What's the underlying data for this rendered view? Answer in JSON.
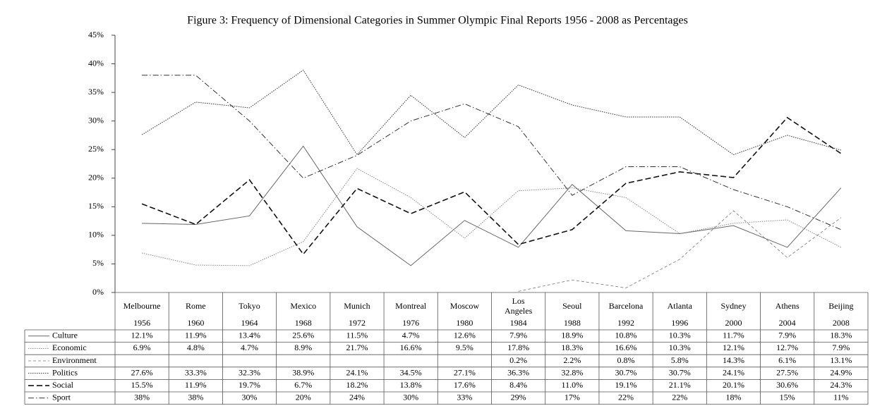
{
  "chart_data": {
    "type": "line",
    "title": "Figure 3: Frequency of Dimensional Categories in Summer Olympic Final Reports 1956 - 2008 as Percentages",
    "categories": [
      "Melbourne",
      "Rome",
      "Tokyo",
      "Mexico",
      "Munich",
      "Montreal",
      "Moscow",
      "Los Angeles",
      "Seoul",
      "Barcelona",
      "Atlanta",
      "Sydney",
      "Athens",
      "Beijing"
    ],
    "years": [
      1956,
      1960,
      1964,
      1968,
      1972,
      1976,
      1980,
      1984,
      1988,
      1992,
      1996,
      2000,
      2004,
      2008
    ],
    "ylim": [
      0,
      45
    ],
    "yticks": [
      {
        "value": 0,
        "label": "0%"
      },
      {
        "value": 5,
        "label": "5%"
      },
      {
        "value": 10,
        "label": "10%"
      },
      {
        "value": 15,
        "label": "15%"
      },
      {
        "value": 20,
        "label": "20%"
      },
      {
        "value": 25,
        "label": "25%"
      },
      {
        "value": 30,
        "label": "30%"
      },
      {
        "value": 35,
        "label": "35%"
      },
      {
        "value": 40,
        "label": "40%"
      },
      {
        "value": 45,
        "label": "45%"
      }
    ],
    "series": [
      {
        "name": "Culture",
        "color": "#666666",
        "line_style": "solid",
        "values": [
          12.1,
          11.9,
          13.4,
          25.6,
          11.5,
          4.7,
          12.6,
          7.9,
          18.9,
          10.8,
          10.3,
          11.7,
          7.9,
          18.3
        ],
        "value_labels": [
          "12.1%",
          "11.9%",
          "13.4%",
          "25.6%",
          "11.5%",
          "4.7%",
          "12.6%",
          "7.9%",
          "18.9%",
          "10.8%",
          "10.3%",
          "11.7%",
          "7.9%",
          "18.3%"
        ]
      },
      {
        "name": "Economic",
        "color": "#888888",
        "line_style": "dotted",
        "values": [
          6.9,
          4.8,
          4.7,
          8.9,
          21.7,
          16.6,
          9.5,
          17.8,
          18.3,
          16.6,
          10.3,
          12.1,
          12.7,
          7.9
        ],
        "value_labels": [
          "6.9%",
          "4.8%",
          "4.7%",
          "8.9%",
          "21.7%",
          "16.6%",
          "9.5%",
          "17.8%",
          "18.3%",
          "16.6%",
          "10.3%",
          "12.1%",
          "12.7%",
          "7.9%"
        ]
      },
      {
        "name": "Environment",
        "color": "#777777",
        "line_style": "dashed",
        "values": [
          null,
          null,
          null,
          null,
          null,
          null,
          null,
          0.2,
          2.2,
          0.8,
          5.8,
          14.3,
          6.1,
          13.1
        ],
        "value_labels": [
          null,
          null,
          null,
          null,
          null,
          null,
          null,
          "0.2%",
          "2.2%",
          "0.8%",
          "5.8%",
          "14.3%",
          "6.1%",
          "13.1%"
        ]
      },
      {
        "name": "Politics",
        "color": "#333333",
        "line_style": "dotted",
        "values": [
          27.6,
          33.3,
          32.3,
          38.9,
          24.1,
          34.5,
          27.1,
          36.3,
          32.8,
          30.7,
          30.7,
          24.1,
          27.5,
          24.9
        ],
        "value_labels": [
          "27.6%",
          "33.3%",
          "32.3%",
          "38.9%",
          "24.1%",
          "34.5%",
          "27.1%",
          "36.3%",
          "32.8%",
          "30.7%",
          "30.7%",
          "24.1%",
          "27.5%",
          "24.9%"
        ]
      },
      {
        "name": "Social",
        "color": "#111111",
        "line_style": "long-dash",
        "values": [
          15.5,
          11.9,
          19.7,
          6.7,
          18.2,
          13.8,
          17.6,
          8.4,
          11.0,
          19.1,
          21.1,
          20.1,
          30.6,
          24.3
        ],
        "value_labels": [
          "15.5%",
          "11.9%",
          "19.7%",
          "6.7%",
          "18.2%",
          "13.8%",
          "17.6%",
          "8.4%",
          "11.0%",
          "19.1%",
          "21.1%",
          "20.1%",
          "30.6%",
          "24.3%"
        ]
      },
      {
        "name": "Sport",
        "color": "#333333",
        "line_style": "dash-dot",
        "values": [
          38,
          38,
          30,
          20,
          24,
          30,
          33,
          29,
          17,
          22,
          22,
          18,
          15,
          11
        ],
        "value_labels": [
          "38%",
          "38%",
          "30%",
          "20%",
          "24%",
          "30%",
          "33%",
          "29%",
          "17%",
          "22%",
          "22%",
          "18%",
          "15%",
          "11%"
        ]
      }
    ]
  }
}
